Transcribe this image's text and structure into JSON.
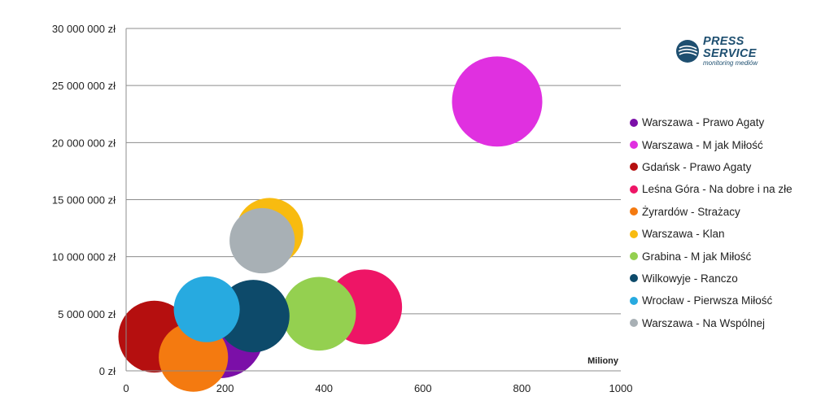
{
  "chart_data": {
    "type": "bubble",
    "x_unit_label": "Miliony",
    "xlim": [
      0,
      1000
    ],
    "ylim": [
      0,
      30000000
    ],
    "x_ticks": [
      "0",
      "200",
      "400",
      "600",
      "800",
      "1000"
    ],
    "y_ticks": [
      "0 zł",
      "5 000 000 zł",
      "10 000 000 zł",
      "15 000 000 zł",
      "20 000 000 zł",
      "25 000 000 zł",
      "30 000 000 zł"
    ],
    "grid": "horizontal",
    "legend_position": "right",
    "series": [
      {
        "name": "Warszawa - Prawo Agaty",
        "color": "#7b0fa8",
        "x": 190,
        "y": 3200000,
        "size": 85
      },
      {
        "name": "Warszawa - M jak Miłość",
        "color": "#e030e0",
        "x": 750,
        "y": 23600000,
        "size": 90
      },
      {
        "name": "Gdańsk - Prawo Agaty",
        "color": "#b50f0f",
        "x": 57,
        "y": 3000000,
        "size": 57
      },
      {
        "name": "Leśna Góra - Na dobre i na złe",
        "color": "#ee1566",
        "x": 482,
        "y": 5600000,
        "size": 62
      },
      {
        "name": "Żyrardów - Strażacy",
        "color": "#f47a10",
        "x": 136,
        "y": 1200000,
        "size": 53
      },
      {
        "name": "Warszawa - Klan",
        "color": "#f8bb10",
        "x": 290,
        "y": 12200000,
        "size": 50
      },
      {
        "name": "Grabina - M jak Miłość",
        "color": "#94d050",
        "x": 390,
        "y": 5000000,
        "size": 60
      },
      {
        "name": "Wilkowyje - Ranczo",
        "color": "#0d4a6a",
        "x": 257,
        "y": 4800000,
        "size": 58
      },
      {
        "name": "Wrocław - Pierwsza Miłość",
        "color": "#27aae0",
        "x": 163,
        "y": 5400000,
        "size": 48
      },
      {
        "name": "Warszawa - Na Wspólnej",
        "color": "#a8b0b5",
        "x": 275,
        "y": 11400000,
        "size": 47
      }
    ]
  },
  "logo": {
    "line1": "PRESS",
    "line2": "SERVICE",
    "line3": "monitoring mediów",
    "color": "#1e4f70"
  }
}
